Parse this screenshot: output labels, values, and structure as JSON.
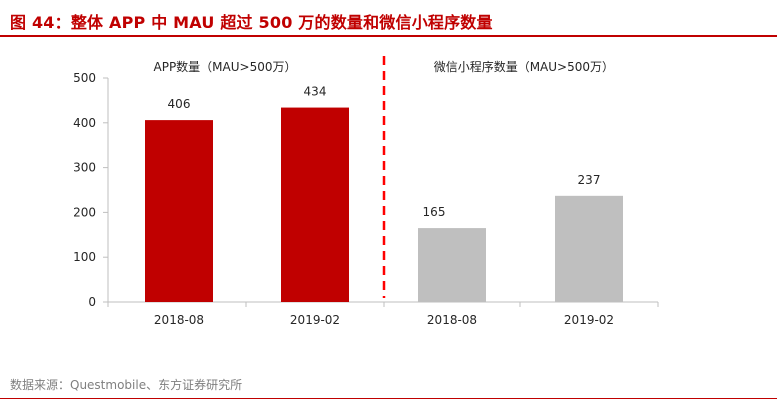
{
  "figure": {
    "title": "图 44：整体 APP 中 MAU 超过 500 万的数量和微信小程序数量",
    "source": "数据来源：Questmobile、东方证券研究所"
  },
  "colors": {
    "title": "#c00000",
    "app_bar": "#c00000",
    "mini_program_bar": "#bfbfbf",
    "divider": "#ff0000",
    "axis": "#bfbfbf",
    "text": "#262626",
    "source": "#7f7f7f"
  },
  "chart_data": {
    "type": "bar",
    "title": "",
    "xlabel": "",
    "ylabel": "",
    "ylim": [
      0,
      500
    ],
    "yticks": [
      0,
      100,
      200,
      300,
      400,
      500
    ],
    "grid": false,
    "categories": [
      "2018-08",
      "2019-02",
      "2018-08",
      "2019-02"
    ],
    "values": [
      406,
      434,
      165,
      237
    ],
    "groups": [
      {
        "name": "APP数量（MAU>500万）",
        "categories": [
          "2018-08",
          "2019-02"
        ],
        "values": [
          406,
          434
        ],
        "color": "#c00000"
      },
      {
        "name": "微信小程序数量（MAU>500万）",
        "categories": [
          "2018-08",
          "2019-02"
        ],
        "values": [
          165,
          237
        ],
        "color": "#bfbfbf"
      }
    ],
    "divider": "dashed vertical line between the two groups"
  }
}
